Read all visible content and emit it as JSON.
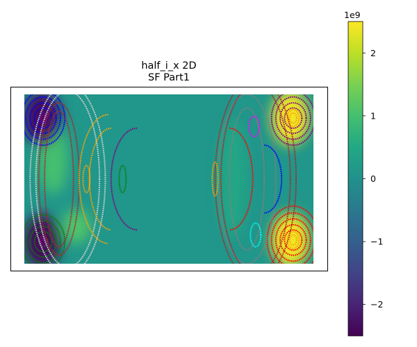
{
  "chart_data": {
    "type": "heatmap",
    "title_lines": [
      "half_i_x 2D",
      "SF Part1"
    ],
    "axes_ticks_visible": false,
    "colormap": "viridis",
    "colorbar": {
      "vmin": -2.5,
      "vmax": 2.5,
      "offset_label": "1e9",
      "ticks": [
        {
          "value": 2,
          "label": "2"
        },
        {
          "value": 1,
          "label": "1"
        },
        {
          "value": 0,
          "label": "0"
        },
        {
          "value": -1,
          "label": "−1"
        },
        {
          "value": -2,
          "label": "−2"
        }
      ]
    },
    "background_value": 0.1,
    "blobs": [
      {
        "name": "left-band-upper",
        "cx": 0.1,
        "cy": 0.38,
        "rx": 0.05,
        "ry": 0.21,
        "value": 1.0
      },
      {
        "name": "left-band-lower",
        "cx": 0.18,
        "cy": 0.78,
        "rx": 0.05,
        "ry": 0.1,
        "value": 1.1
      },
      {
        "name": "top-left-extremum",
        "cx": 0.06,
        "cy": 0.14,
        "rx": 0.065,
        "ry": 0.16,
        "value": -2.4
      },
      {
        "name": "bottom-left-extremum",
        "cx": 0.06,
        "cy": 0.87,
        "rx": 0.065,
        "ry": 0.16,
        "value": -2.4
      },
      {
        "name": "right-band",
        "cx": 0.72,
        "cy": 0.5,
        "rx": 0.05,
        "ry": 0.35,
        "value": 0.45
      },
      {
        "name": "top-right-extremum",
        "cx": 0.92,
        "cy": 0.14,
        "rx": 0.065,
        "ry": 0.16,
        "value": 2.4
      },
      {
        "name": "bottom-right-extremum",
        "cx": 0.92,
        "cy": 0.86,
        "rx": 0.065,
        "ry": 0.16,
        "value": 2.4
      }
    ],
    "contour_groups": [
      {
        "name": "top-left-blue-rings",
        "color": "#0000ff",
        "cx": 0.065,
        "cy": 0.14,
        "radii": [
          [
            0.015,
            0.03
          ],
          [
            0.03,
            0.06
          ],
          [
            0.045,
            0.09
          ],
          [
            0.06,
            0.125
          ],
          [
            0.075,
            0.16
          ]
        ]
      },
      {
        "name": "top-left-purple-rings",
        "color": "#800080",
        "cx": 0.065,
        "cy": 0.14,
        "radii": [
          [
            0.007,
            0.015
          ],
          [
            0.012,
            0.03
          ]
        ]
      },
      {
        "name": "bottom-left-green-rings",
        "color": "#008000",
        "cx": 0.065,
        "cy": 0.87,
        "radii": [
          [
            0.015,
            0.03
          ],
          [
            0.03,
            0.06
          ],
          [
            0.045,
            0.09
          ],
          [
            0.06,
            0.125
          ],
          [
            0.075,
            0.16
          ]
        ]
      },
      {
        "name": "bottom-left-purple-rings",
        "color": "#800080",
        "cx": 0.065,
        "cy": 0.87,
        "radii": [
          [
            0.007,
            0.015
          ],
          [
            0.012,
            0.03
          ]
        ]
      },
      {
        "name": "top-right-purple-rings",
        "color": "#800080",
        "cx": 0.93,
        "cy": 0.14,
        "radii": [
          [
            0.03,
            0.06
          ],
          [
            0.045,
            0.09
          ],
          [
            0.06,
            0.125
          ],
          [
            0.075,
            0.16
          ]
        ]
      },
      {
        "name": "top-right-orange-rings",
        "color": "#ffa500",
        "cx": 0.93,
        "cy": 0.14,
        "radii": [
          [
            0.012,
            0.03
          ],
          [
            0.02,
            0.05
          ]
        ]
      },
      {
        "name": "bottom-right-red-rings",
        "color": "#ff0000",
        "cx": 0.93,
        "cy": 0.86,
        "radii": [
          [
            0.03,
            0.06
          ],
          [
            0.045,
            0.09
          ],
          [
            0.06,
            0.125
          ],
          [
            0.075,
            0.16
          ],
          [
            0.09,
            0.2
          ]
        ]
      },
      {
        "name": "bottom-right-orange-rings",
        "color": "#ffa500",
        "cx": 0.93,
        "cy": 0.86,
        "radii": [
          [
            0.012,
            0.03
          ],
          [
            0.02,
            0.05
          ]
        ]
      },
      {
        "name": "left-band-brown-rings",
        "color": "#a52a2a",
        "cx": 0.12,
        "cy": 0.5,
        "radii": [
          [
            0.05,
            0.4
          ],
          [
            0.07,
            0.45
          ]
        ]
      },
      {
        "name": "left-band-lightgray-rings",
        "color": "#d3d3d3",
        "cx": 0.15,
        "cy": 0.5,
        "radii": [
          [
            0.11,
            0.52
          ],
          [
            0.13,
            0.56
          ]
        ]
      },
      {
        "name": "right-band-gray-rings",
        "color": "#808080",
        "cx": 0.77,
        "cy": 0.5,
        "radii": [
          [
            0.1,
            0.5
          ]
        ]
      },
      {
        "name": "right-band-brown-rings",
        "color": "#a52a2a",
        "cx": 0.8,
        "cy": 0.5,
        "radii": [
          [
            0.12,
            0.56
          ],
          [
            0.14,
            0.6
          ]
        ]
      },
      {
        "name": "center-right-grey-ring",
        "color": "#808080",
        "cx": 0.77,
        "cy": 0.5,
        "radii": [
          [
            0.06,
            0.42
          ]
        ]
      }
    ],
    "arcs": [
      {
        "name": "left-orange-arc",
        "color": "#ffa500",
        "cx": 0.29,
        "cy": 0.5,
        "rx": 0.1,
        "ry": 0.38,
        "side": "left"
      },
      {
        "name": "left-orange-inner-arc",
        "color": "#ffa500",
        "cx": 0.3,
        "cy": 0.5,
        "rx": 0.075,
        "ry": 0.3,
        "side": "left"
      },
      {
        "name": "left-purple-arc",
        "color": "#800080",
        "cx": 0.39,
        "cy": 0.5,
        "rx": 0.09,
        "ry": 0.3,
        "side": "left"
      },
      {
        "name": "right-red-arc",
        "color": "#ff0000",
        "cx": 0.71,
        "cy": 0.5,
        "rx": 0.08,
        "ry": 0.3,
        "side": "right"
      },
      {
        "name": "right-blue-arc",
        "color": "#0000ff",
        "cx": 0.83,
        "cy": 0.5,
        "rx": 0.06,
        "ry": 0.2,
        "side": "right"
      }
    ],
    "small_loops": [
      {
        "name": "left-orange-loop",
        "color": "#ffa500",
        "cx": 0.215,
        "cy": 0.5,
        "rx": 0.012,
        "ry": 0.08
      },
      {
        "name": "left-green-loop",
        "color": "#008000",
        "cx": 0.34,
        "cy": 0.5,
        "rx": 0.012,
        "ry": 0.08
      },
      {
        "name": "right-orange-loop",
        "color": "#ffa500",
        "cx": 0.66,
        "cy": 0.5,
        "rx": 0.01,
        "ry": 0.1
      },
      {
        "name": "right-magenta-loop",
        "color": "#ff00ff",
        "cx": 0.795,
        "cy": 0.19,
        "rx": 0.018,
        "ry": 0.06
      },
      {
        "name": "right-cyan-loop",
        "color": "#00ffff",
        "cx": 0.8,
        "cy": 0.83,
        "rx": 0.018,
        "ry": 0.07
      }
    ]
  }
}
